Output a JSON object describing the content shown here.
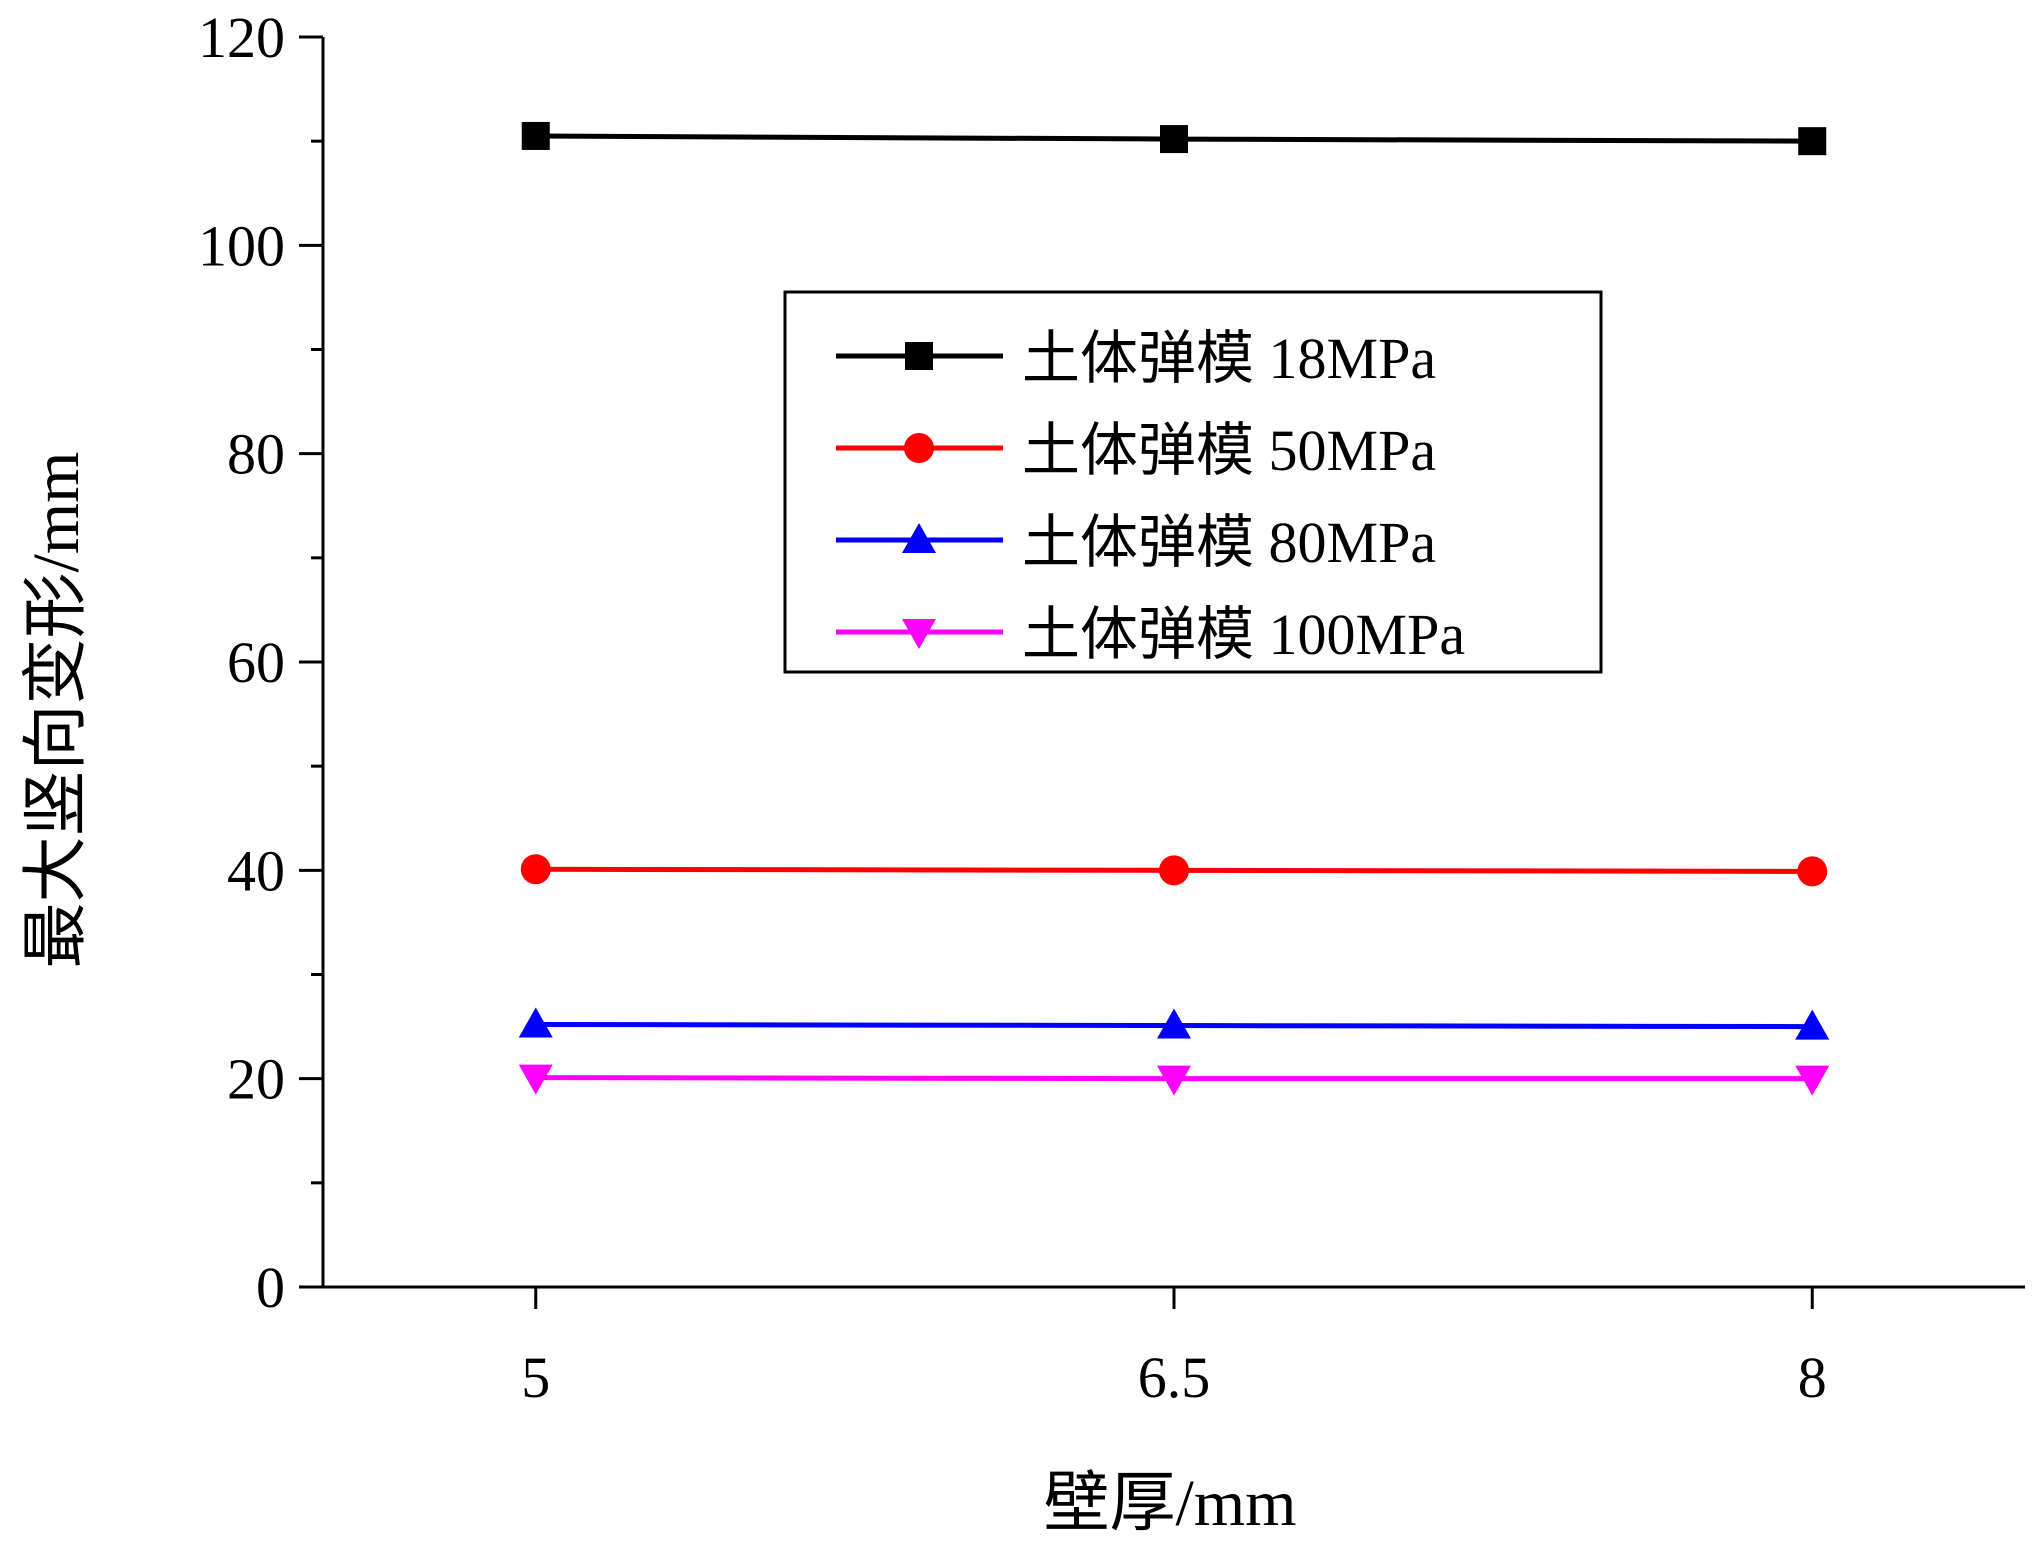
{
  "chart_data": {
    "type": "line",
    "title": "",
    "xlabel": "壁厚/mm",
    "ylabel": "最大竖向变形/mm",
    "x": [
      5,
      6.5,
      8
    ],
    "x_tick_labels": [
      "5",
      "6.5",
      "8"
    ],
    "xlim": [
      4.5,
      8.5
    ],
    "ylim": [
      0,
      120
    ],
    "y_ticks": [
      0,
      20,
      40,
      60,
      80,
      100,
      120
    ],
    "y_tick_labels": [
      "0",
      "20",
      "40",
      "60",
      "80",
      "100",
      "120"
    ],
    "y_minor_step": 10,
    "grid": false,
    "legend_position": "upper-center",
    "series": [
      {
        "name": "土体弹模 18MPa",
        "values": [
          110.5,
          110.2,
          110.0
        ],
        "color": "#000000",
        "marker": "square"
      },
      {
        "name": "土体弹模 50MPa",
        "values": [
          40.1,
          40.0,
          39.9
        ],
        "color": "#ff0000",
        "marker": "circle"
      },
      {
        "name": "土体弹模 80MPa",
        "values": [
          25.2,
          25.1,
          25.0
        ],
        "color": "#0000ff",
        "marker": "triangle-up"
      },
      {
        "name": "土体弹模 100MPa",
        "values": [
          20.1,
          20.0,
          20.0
        ],
        "color": "#ff00ff",
        "marker": "triangle-down"
      }
    ]
  }
}
